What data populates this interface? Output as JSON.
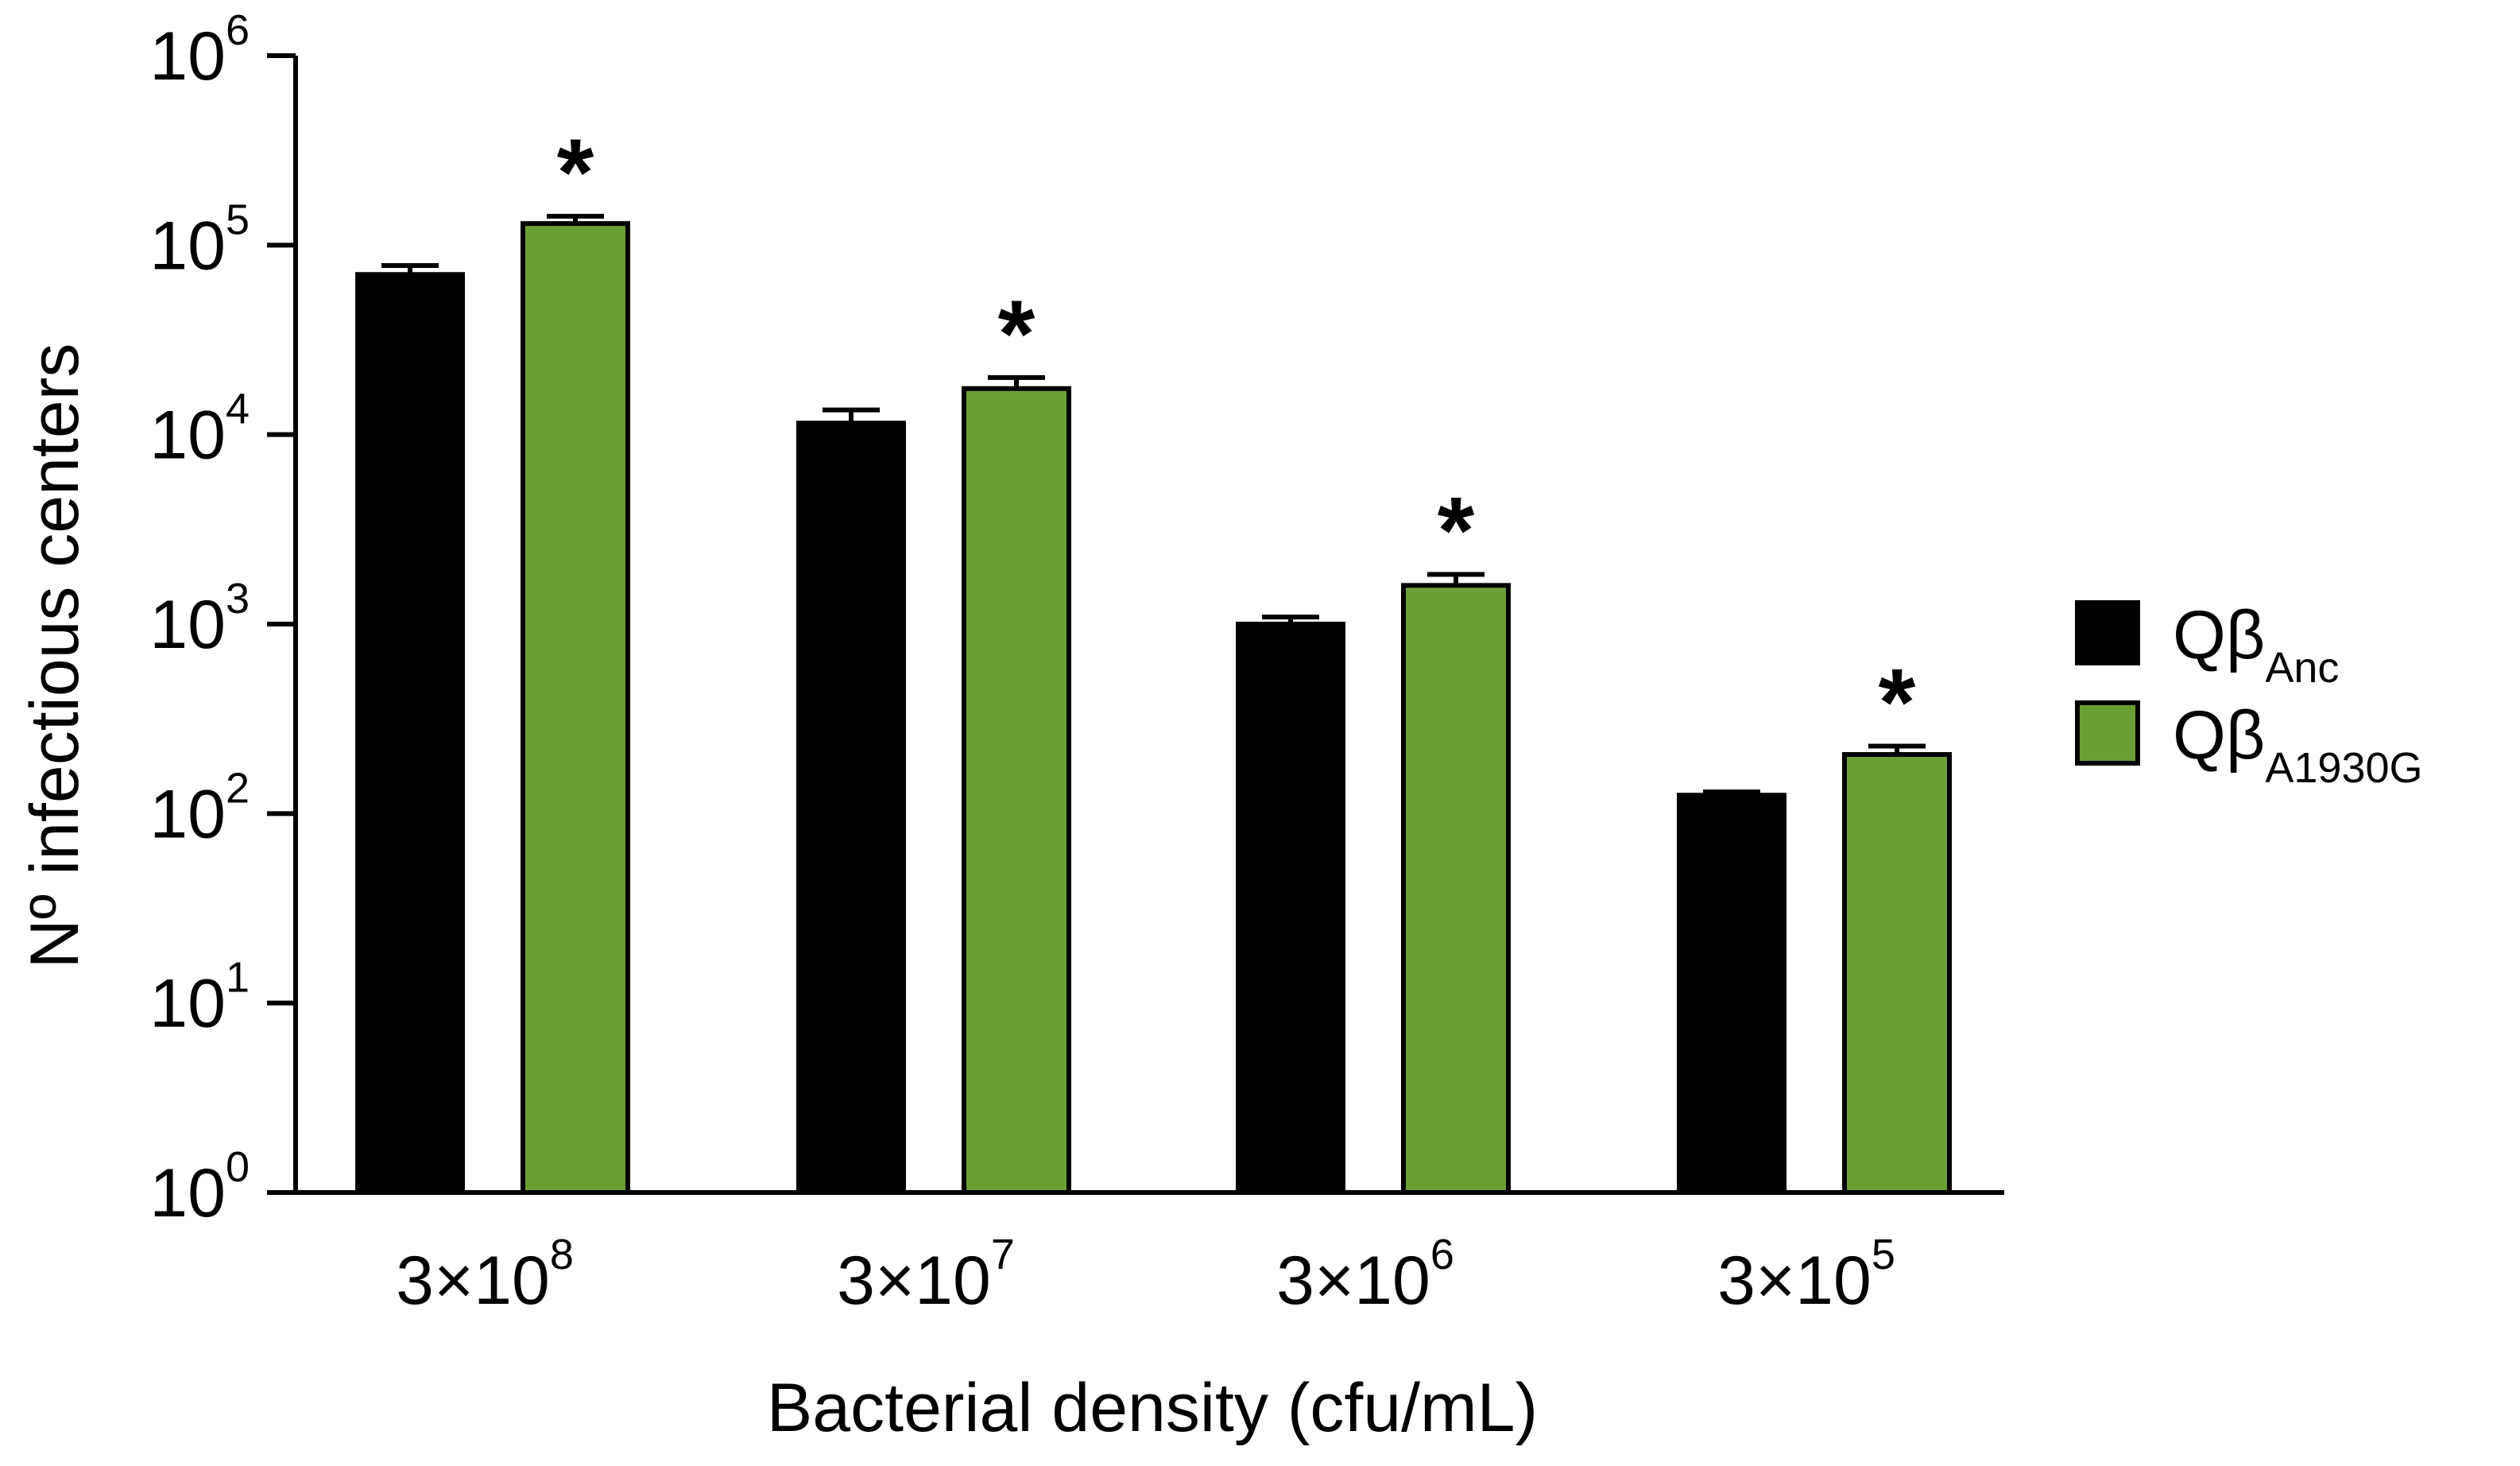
{
  "chart_data": {
    "type": "bar",
    "scale": "log",
    "xlabel": "Bacterial density (cfu/mL)",
    "ylabel": "Nº infectious centers",
    "ylim": [
      1,
      1000000
    ],
    "yticks": [
      {
        "value": 1,
        "base": "10",
        "exp": "0"
      },
      {
        "value": 10,
        "base": "10",
        "exp": "1"
      },
      {
        "value": 100,
        "base": "10",
        "exp": "2"
      },
      {
        "value": 1000,
        "base": "10",
        "exp": "3"
      },
      {
        "value": 10000,
        "base": "10",
        "exp": "4"
      },
      {
        "value": 100000,
        "base": "10",
        "exp": "5"
      },
      {
        "value": 1000000,
        "base": "10",
        "exp": "6"
      }
    ],
    "categories": [
      {
        "base": "3×10",
        "exp": "8"
      },
      {
        "base": "3×10",
        "exp": "7"
      },
      {
        "base": "3×10",
        "exp": "6"
      },
      {
        "base": "3×10",
        "exp": "5"
      }
    ],
    "series": [
      {
        "name_main": "Qβ",
        "name_sub": "Anc",
        "color": "#000000",
        "values": [
          70000,
          11500,
          1000,
          125
        ],
        "errors": [
          8000,
          2000,
          90,
          5
        ]
      },
      {
        "name_main": "Qβ",
        "name_sub": "A1930G",
        "color": "#6a9f36",
        "values": [
          130000,
          17500,
          1600,
          205
        ],
        "errors": [
          12000,
          2500,
          230,
          22
        ]
      }
    ],
    "annotations": [
      "*",
      "*",
      "*",
      "*"
    ],
    "grid": false,
    "legend_position": "right"
  }
}
